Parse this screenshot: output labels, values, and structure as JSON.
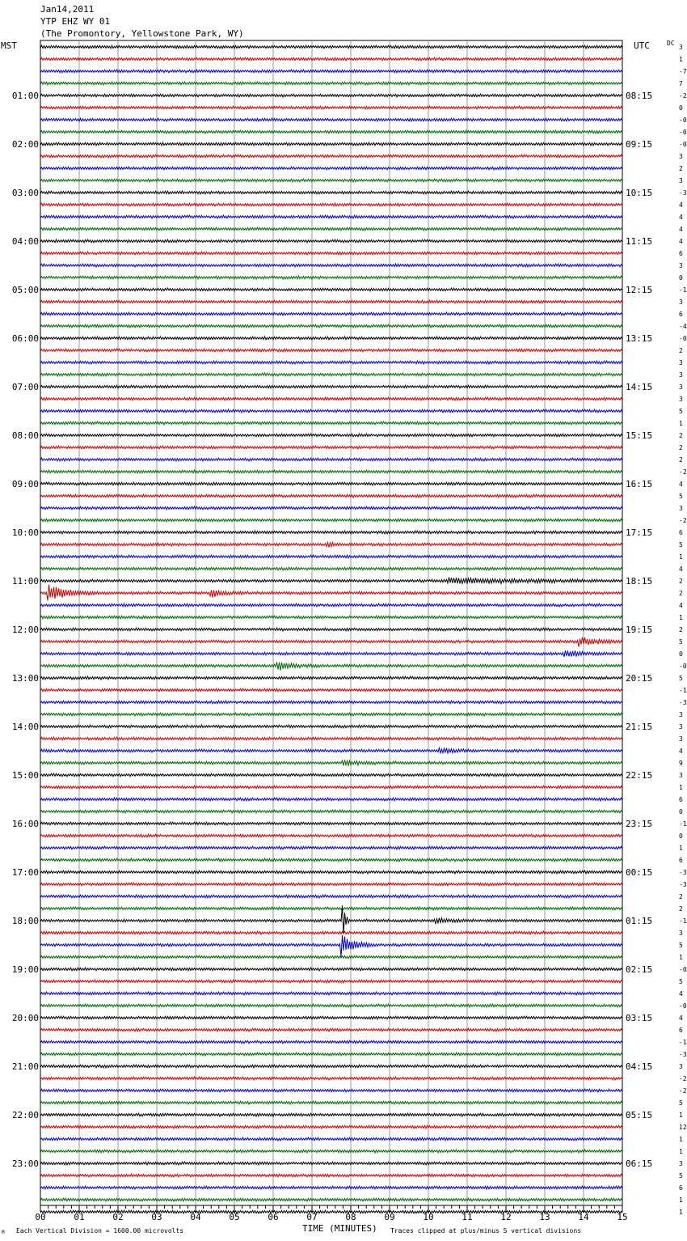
{
  "header": {
    "date": "Jan14,2011",
    "station": "YTP EHZ WY 01",
    "location": "(The Promontory, Yellowstone Park, WY)"
  },
  "labels": {
    "left_tz": "MST",
    "right_tz": "UTC",
    "dc": "DC",
    "xlabel": "TIME (MINUTES)",
    "scale_note": "Each Vertical Division = 1600.00 microvolts",
    "clip_note": "Traces clipped at plus/minus 5 vertical divisions",
    "corner_mark": "M"
  },
  "colors": {
    "trace_cycle": [
      "#000000",
      "#cc0000",
      "#0000cc",
      "#006600"
    ],
    "grid": "#999999"
  },
  "chart_data": {
    "type": "line",
    "title": "YTP EHZ WY 01",
    "xlabel": "TIME (MINUTES)",
    "xlim": [
      0,
      15
    ],
    "x_ticks": [
      "00",
      "01",
      "02",
      "03",
      "04",
      "05",
      "06",
      "07",
      "08",
      "09",
      "10",
      "11",
      "12",
      "13",
      "14",
      "15"
    ],
    "lines_per_hour": 4,
    "minutes_per_line": 15,
    "mst_hour_labels": [
      "01:00",
      "02:00",
      "03:00",
      "04:00",
      "05:00",
      "06:00",
      "07:00",
      "08:00",
      "09:00",
      "10:00",
      "11:00",
      "12:00",
      "13:00",
      "14:00",
      "15:00",
      "16:00",
      "17:00",
      "18:00",
      "19:00",
      "20:00",
      "21:00",
      "22:00",
      "23:00"
    ],
    "utc_hour_labels": [
      "08:15",
      "09:15",
      "10:15",
      "11:15",
      "12:15",
      "13:15",
      "14:15",
      "15:15",
      "16:15",
      "17:15",
      "18:15",
      "19:15",
      "20:15",
      "21:15",
      "22:15",
      "23:15",
      "00:15",
      "01:15",
      "02:15",
      "03:15",
      "04:15",
      "05:15",
      "06:15"
    ],
    "dc_offsets": [
      "3",
      "1",
      "-7",
      "7",
      "-2",
      "0",
      "-0",
      "-0",
      "-0",
      "3",
      "2",
      "3",
      "-3",
      "4",
      "4",
      "4",
      "4",
      "6",
      "3",
      "0",
      "-1",
      "3",
      "6",
      "-4",
      "-0",
      "2",
      "3",
      "3",
      "3",
      "3",
      "5",
      "1",
      "2",
      "2",
      "2",
      "-2",
      "4",
      "5",
      "3",
      "-2",
      "6",
      "5",
      "1",
      "4",
      "2",
      "2",
      "4",
      "1",
      "2",
      "5",
      "0",
      "-0",
      "5",
      "-1",
      "-3",
      "3",
      "3",
      "3",
      "4",
      "9",
      "3",
      "1",
      "6",
      "0",
      "-1",
      "0",
      "1",
      "6",
      "-3",
      "-3",
      "2",
      "2",
      "-1",
      "3",
      "5",
      "1",
      "-0",
      "5",
      "4",
      "-0",
      "4",
      "6",
      "-1",
      "-3",
      "3",
      "-2",
      "-2",
      "5",
      "1",
      "12",
      "1",
      "1",
      "3",
      "5",
      "6",
      "1",
      "1"
    ],
    "events": [
      {
        "line": 41,
        "minute": 7.4,
        "amp": 0.25,
        "dur": 0.6
      },
      {
        "line": 44,
        "minute": 10.5,
        "amp": 0.35,
        "dur": 4.5
      },
      {
        "line": 45,
        "minute": 0.2,
        "amp": 1.1,
        "dur": 1.3
      },
      {
        "line": 45,
        "minute": 4.4,
        "amp": 0.45,
        "dur": 0.8
      },
      {
        "line": 49,
        "minute": 13.9,
        "amp": 0.55,
        "dur": 1.1
      },
      {
        "line": 50,
        "minute": 13.5,
        "amp": 0.45,
        "dur": 1.2
      },
      {
        "line": 51,
        "minute": 6.1,
        "amp": 0.55,
        "dur": 0.9
      },
      {
        "line": 58,
        "minute": 10.3,
        "amp": 0.3,
        "dur": 1.0
      },
      {
        "line": 59,
        "minute": 7.8,
        "amp": 0.3,
        "dur": 0.9
      },
      {
        "line": 72,
        "minute": 10.2,
        "amp": 0.35,
        "dur": 1.0
      },
      {
        "line": 72,
        "minute": 7.8,
        "amp": 2.6,
        "dur": 0.15
      },
      {
        "line": 74,
        "minute": 7.75,
        "amp": 1.5,
        "dur": 0.8
      }
    ]
  }
}
